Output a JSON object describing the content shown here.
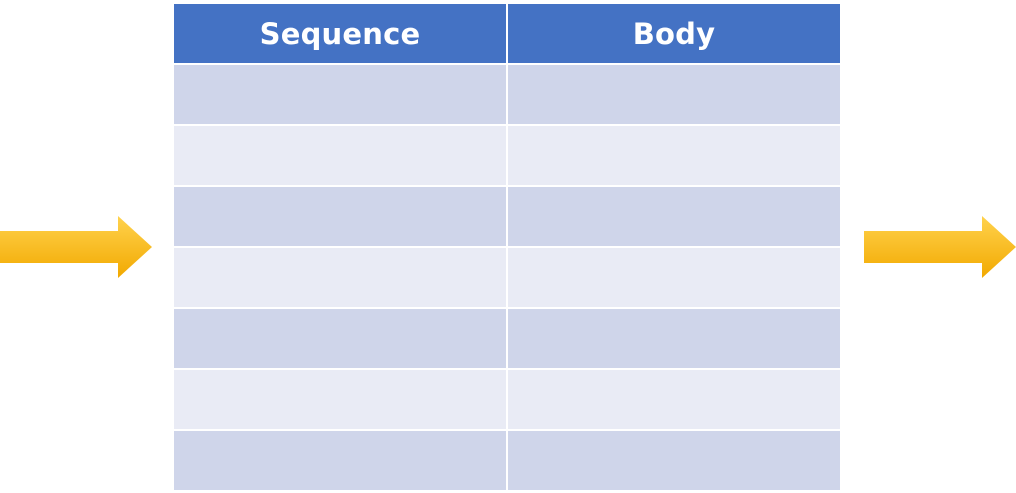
{
  "table": {
    "headers": [
      "Sequence",
      "Body"
    ],
    "rows": [
      [
        "",
        ""
      ],
      [
        "",
        ""
      ],
      [
        "",
        ""
      ],
      [
        "",
        ""
      ],
      [
        "",
        ""
      ],
      [
        "",
        ""
      ],
      [
        "",
        ""
      ]
    ]
  },
  "colors": {
    "header_bg": "#4472c4",
    "row_dark": "#cfd5ea",
    "row_light": "#e9ebf5",
    "arrow_top": "#ffd24d",
    "arrow_bottom": "#f2a900"
  },
  "icons": {
    "input_arrow": "arrow-right-icon",
    "output_arrow": "arrow-right-icon"
  }
}
